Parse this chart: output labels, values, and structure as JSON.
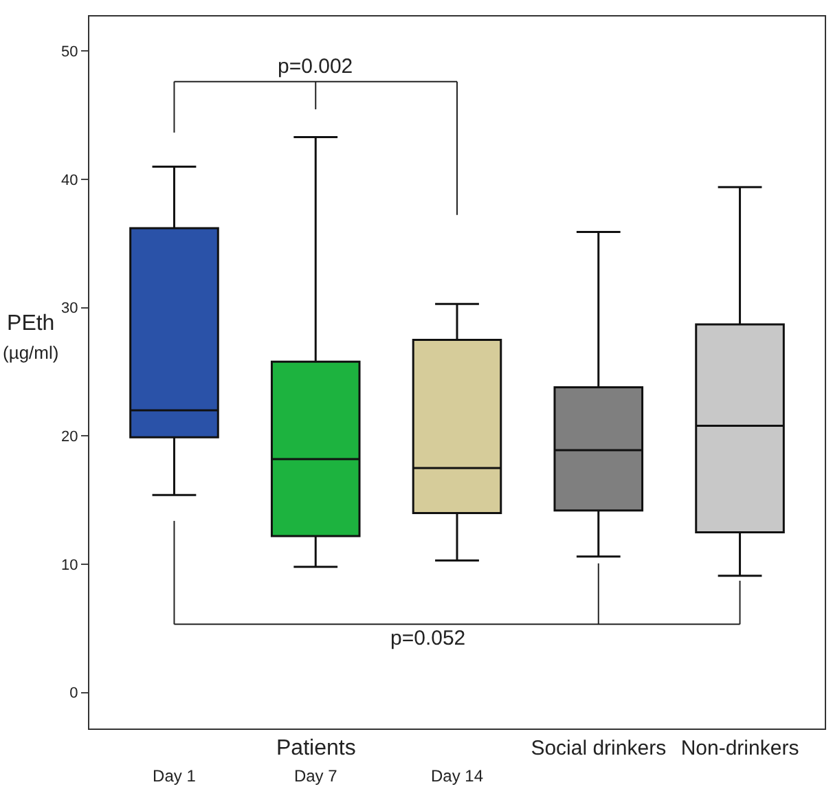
{
  "chart_data": {
    "type": "box",
    "ylabel": "PEth (µg/ml)",
    "categories": [
      "Day 1",
      "Day 7",
      "Day 14",
      "Social drinkers",
      "Non-drinkers"
    ],
    "colors": [
      "#2a52a8",
      "#1db33f",
      "#d6cc9a",
      "#7f7f7f",
      "#c8c8c8"
    ],
    "boxes": [
      {
        "low": 15.4,
        "q1": 19.9,
        "median": 22.0,
        "q3": 36.2,
        "high": 41.0
      },
      {
        "low": 9.8,
        "q1": 12.2,
        "median": 18.2,
        "q3": 25.8,
        "high": 43.3
      },
      {
        "low": 10.3,
        "q1": 14.0,
        "median": 17.5,
        "q3": 27.5,
        "high": 30.3
      },
      {
        "low": 10.6,
        "q1": 14.2,
        "median": 18.9,
        "q3": 23.8,
        "high": 35.9
      },
      {
        "low": 9.1,
        "q1": 12.5,
        "median": 20.8,
        "q3": 28.7,
        "high": 39.4
      }
    ],
    "ylim": [
      -2.8,
      52.7
    ],
    "yticks": [
      0,
      10,
      20,
      30,
      40,
      50
    ],
    "annotations": [
      "p=0.002",
      "p=0.052",
      "Patients"
    ]
  }
}
